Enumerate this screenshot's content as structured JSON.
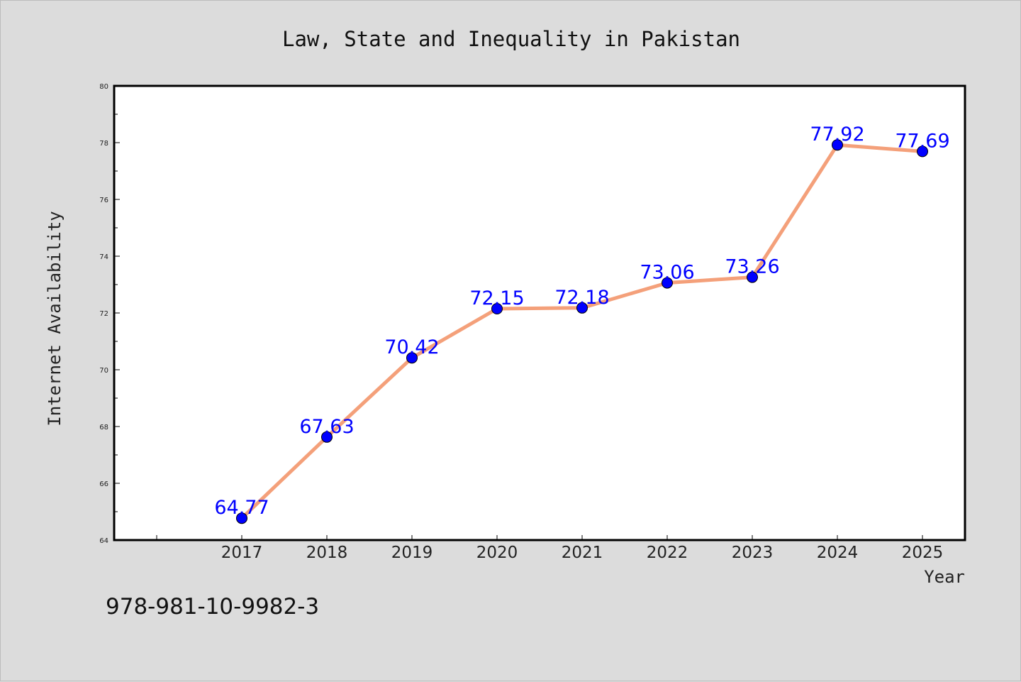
{
  "chart_data": {
    "type": "line",
    "title": "Law, State and Inequality in Pakistan",
    "xlabel": "Year",
    "ylabel": "Internet Availability",
    "categories": [
      "2017",
      "2018",
      "2019",
      "2020",
      "2021",
      "2022",
      "2023",
      "2024",
      "2025"
    ],
    "series": [
      {
        "values": [
          64.77,
          67.63,
          70.42,
          72.15,
          72.18,
          73.06,
          73.26,
          77.92,
          77.69
        ]
      }
    ],
    "data_labels": [
      "64.77",
      "67.63",
      "70.42",
      "72.15",
      "72.18",
      "73.06",
      "73.26",
      "77.92",
      "77.69"
    ],
    "ylim": [
      64,
      80
    ],
    "yticks": [
      "64",
      "66",
      "68",
      "70",
      "72",
      "74",
      "76",
      "78",
      "80"
    ],
    "grid": false,
    "line_color": "#f4a07a",
    "marker_color": "#0000ff",
    "label_color": "#0000ff",
    "background_color": "#dcdcdc",
    "plot_background": "#ffffff"
  },
  "footer": {
    "isbn": "978-981-10-9982-3"
  }
}
